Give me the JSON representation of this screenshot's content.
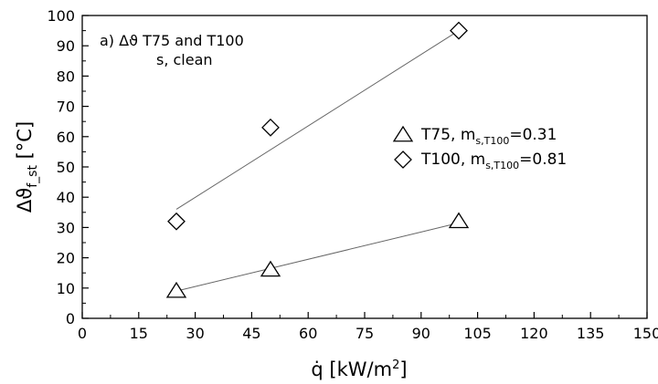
{
  "chart_data": {
    "type": "scatter",
    "title": "",
    "annotation_lines": [
      "a) Δϑ T75 and T100",
      "s, clean"
    ],
    "xlabel": {
      "main": "q̇ [kW/m",
      "sup": "2",
      "end": "]"
    },
    "ylabel": {
      "main": "Δϑ",
      "sub": "f_st",
      "end": " [°C]"
    },
    "xlim": [
      0,
      150
    ],
    "ylim": [
      0,
      100
    ],
    "xticks": [
      "0",
      "15",
      "30",
      "45",
      "60",
      "75",
      "90",
      "105",
      "120",
      "135",
      "150"
    ],
    "yticks": [
      "0",
      "10",
      "20",
      "30",
      "40",
      "50",
      "60",
      "70",
      "80",
      "90",
      "100"
    ],
    "grid": false,
    "legend_position": "right",
    "series": [
      {
        "name": "T75, m",
        "name_sub": "s,T100",
        "name_end": "=0.31",
        "marker": "triangle",
        "x": [
          25,
          50,
          100
        ],
        "y": [
          9,
          16,
          32
        ],
        "fit_line": {
          "x": [
            25,
            100
          ],
          "y": [
            9,
            31.5
          ]
        }
      },
      {
        "name": "T100, m",
        "name_sub": "s,T100",
        "name_end": "=0.81",
        "marker": "diamond",
        "x": [
          25,
          50,
          100
        ],
        "y": [
          32,
          63,
          95
        ],
        "fit_line": {
          "x": [
            25,
            100
          ],
          "y": [
            36,
            95
          ]
        }
      }
    ]
  }
}
